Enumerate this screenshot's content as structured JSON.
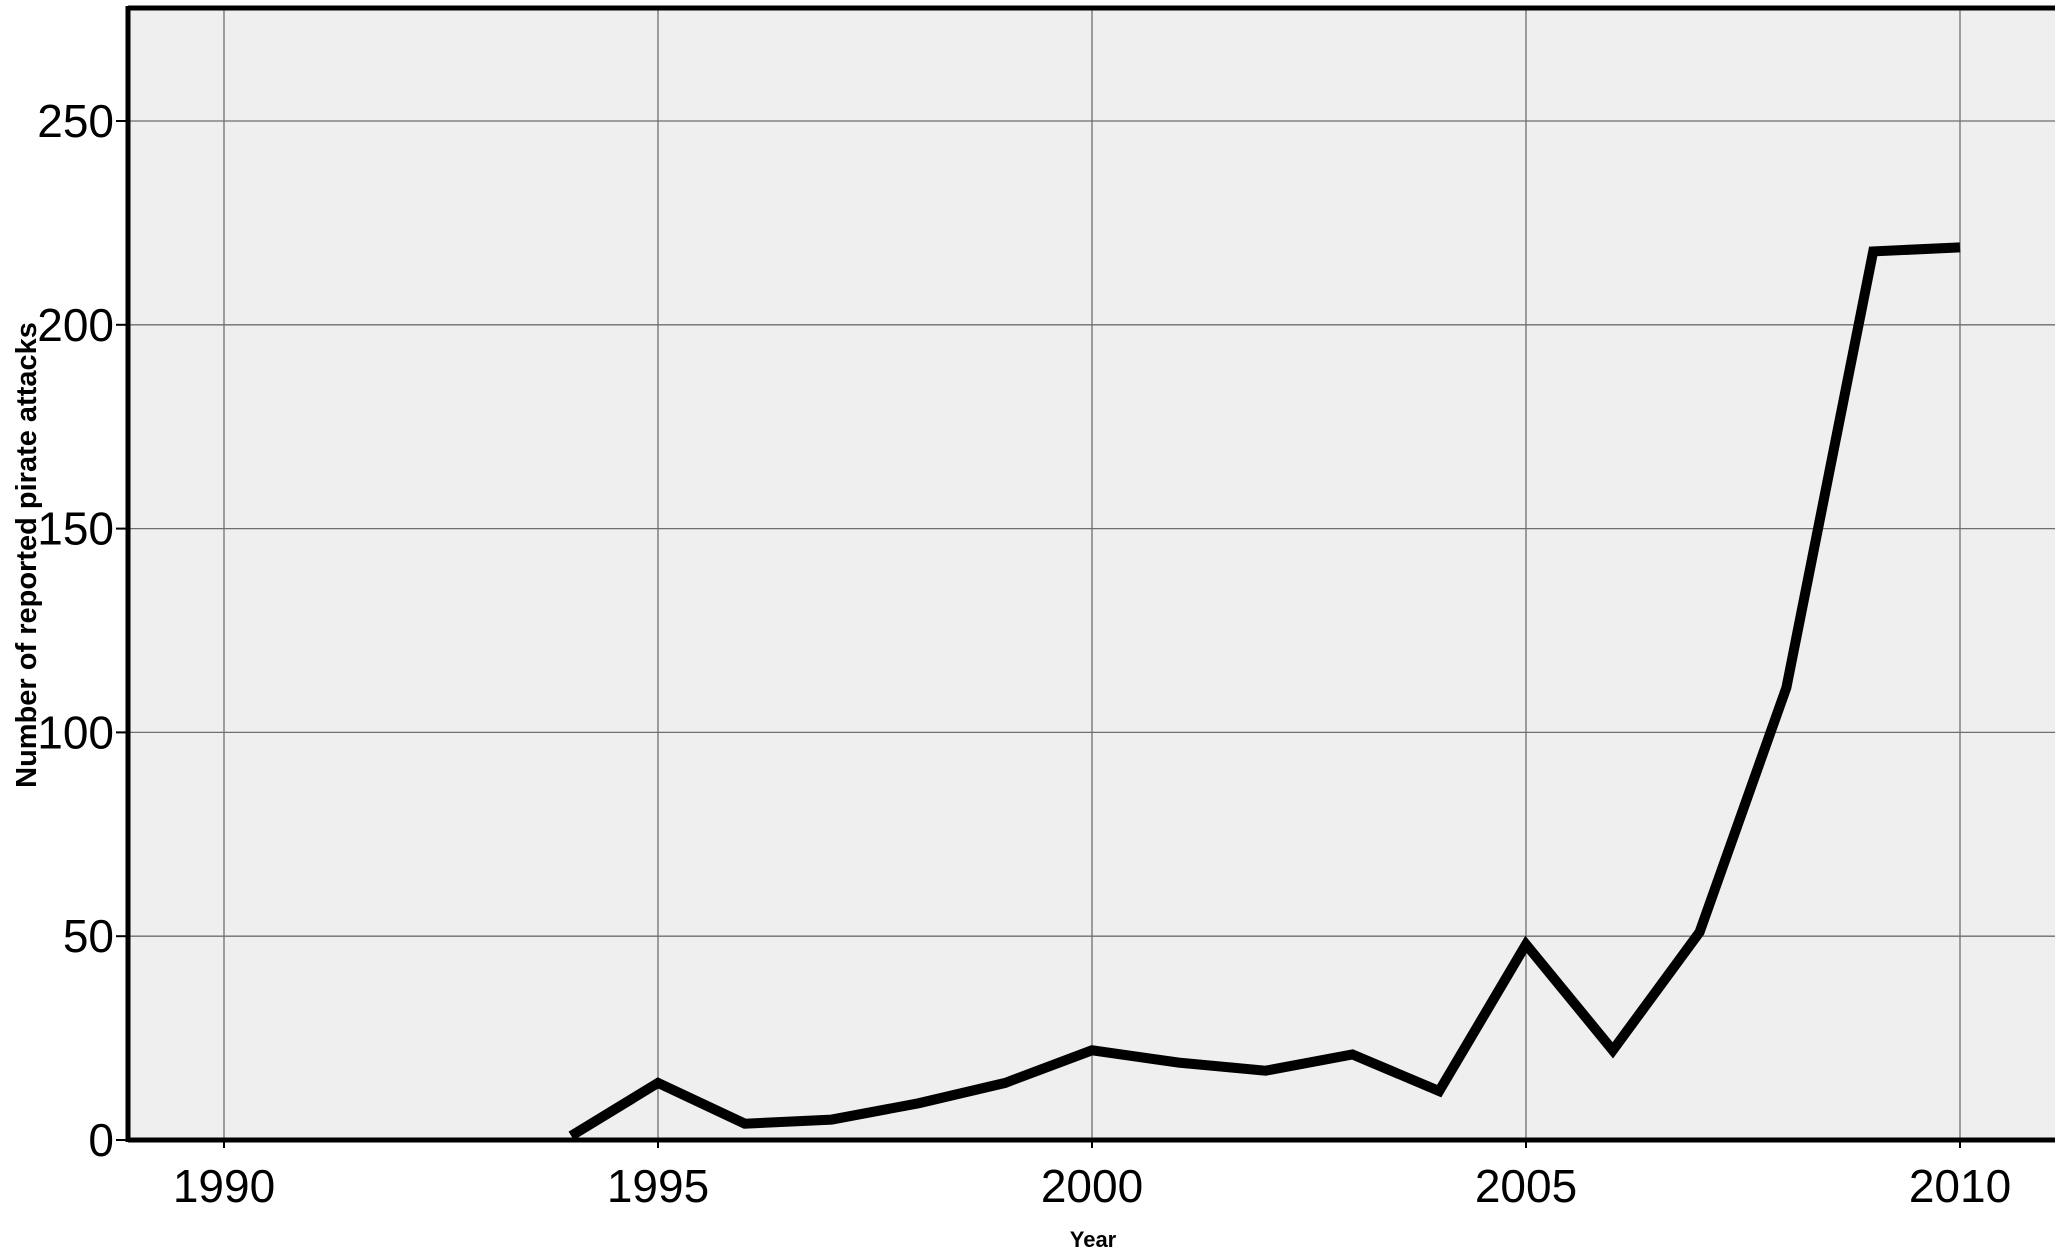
{
  "chart_data": {
    "type": "line",
    "title": "",
    "xlabel": "Year",
    "ylabel": "Number of reported pirate attacks",
    "xlim": [
      1989,
      2011
    ],
    "ylim": [
      0,
      280
    ],
    "x_ticks": [
      1990,
      1995,
      2000,
      2005,
      2010
    ],
    "y_ticks": [
      0,
      50,
      100,
      150,
      200,
      250
    ],
    "grid": true,
    "legend": "none",
    "series": [
      {
        "x": [
          1994,
          1995,
          1996,
          1997,
          1998,
          1999,
          2000,
          2001,
          2002,
          2003,
          2004,
          2005,
          2006,
          2007,
          2008,
          2009,
          2010
        ],
        "values": [
          1,
          14,
          4,
          5,
          9,
          14,
          22,
          19,
          17,
          21,
          12,
          48,
          22,
          51,
          111,
          218,
          219
        ]
      }
    ],
    "colors": {
      "plot_background": "#efefef",
      "gridline": "#6e6e6e",
      "line": "#000000"
    }
  }
}
